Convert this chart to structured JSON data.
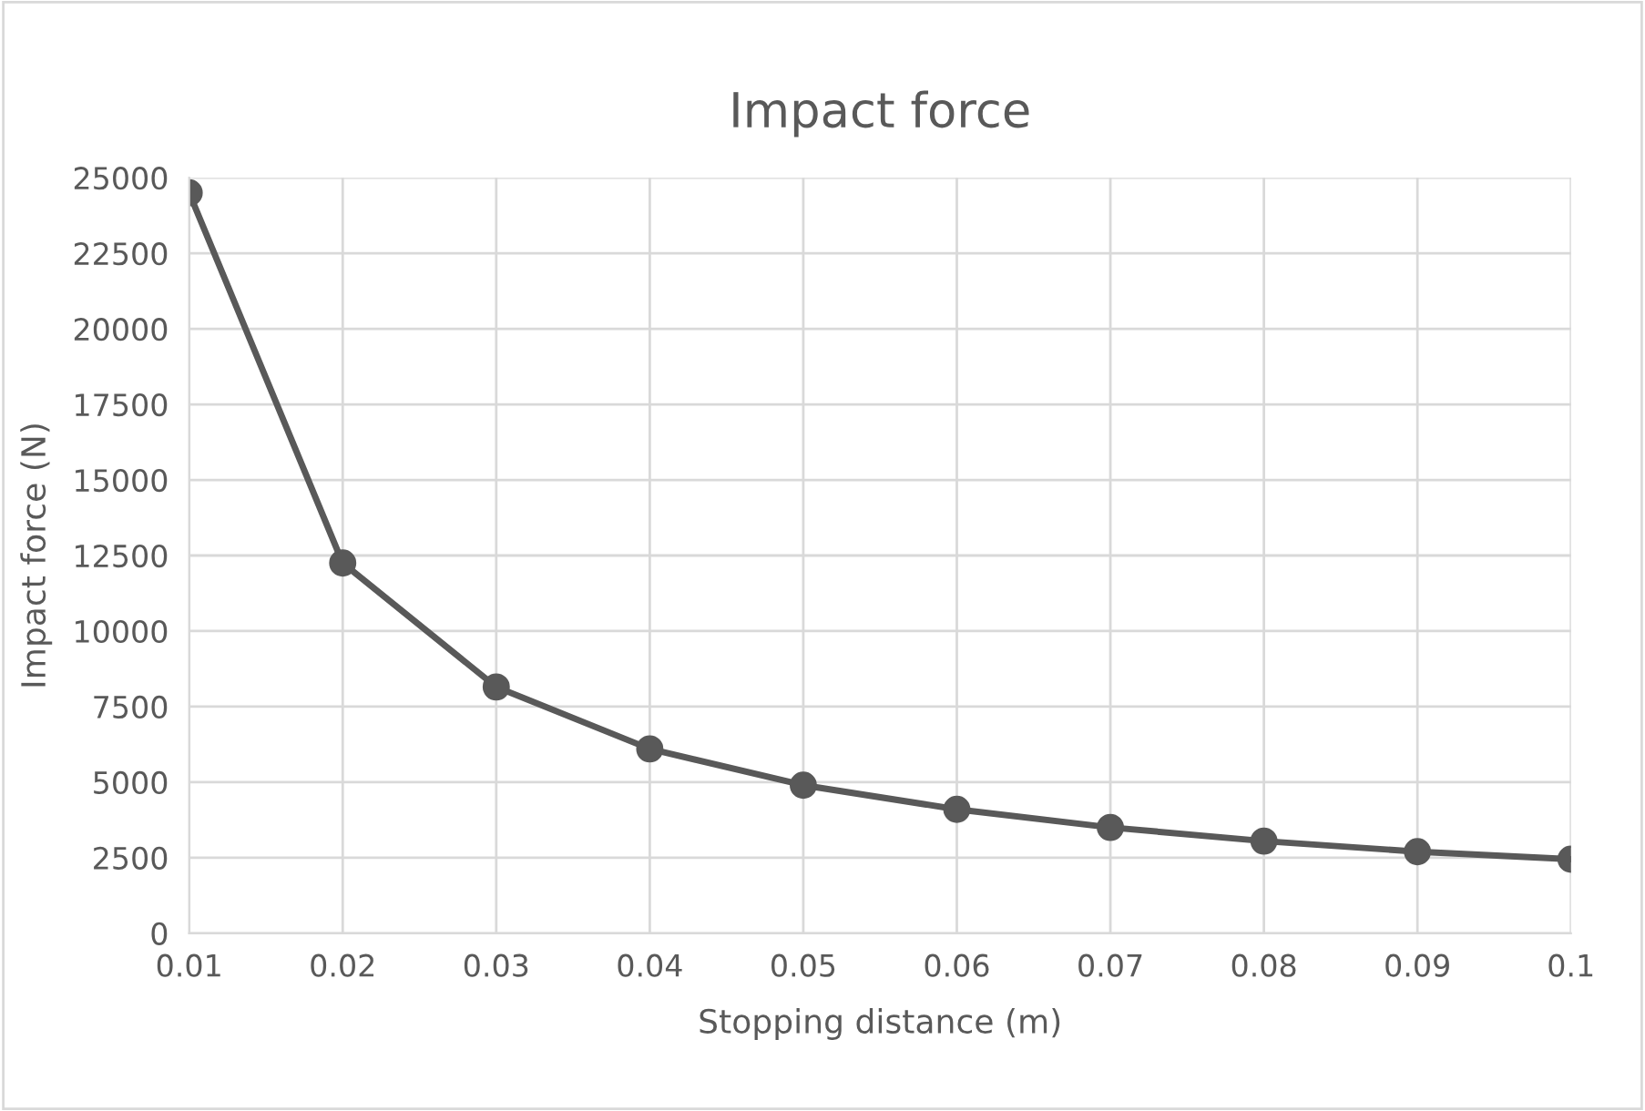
{
  "chart_data": {
    "type": "line",
    "title": "Impact force",
    "xlabel": "Stopping distance (m)",
    "ylabel": "Impact force (N)",
    "x": [
      0.01,
      0.02,
      0.03,
      0.04,
      0.05,
      0.06,
      0.07,
      0.08,
      0.09,
      0.1
    ],
    "series": [
      {
        "color": "#595959",
        "values": [
          24500,
          12250,
          8150,
          6100,
          4900,
          4100,
          3500,
          3050,
          2700,
          2450
        ]
      }
    ],
    "xlim": [
      0.01,
      0.1
    ],
    "xticks": [
      0.01,
      0.02,
      0.03,
      0.04,
      0.05,
      0.06,
      0.07,
      0.08,
      0.09,
      0.1
    ],
    "ylim": [
      0,
      25000
    ],
    "yticks": [
      0,
      2500,
      5000,
      7500,
      10000,
      12500,
      15000,
      17500,
      20000,
      22500,
      25000
    ],
    "grid": true,
    "marker": "circle",
    "line_style": "solid"
  }
}
